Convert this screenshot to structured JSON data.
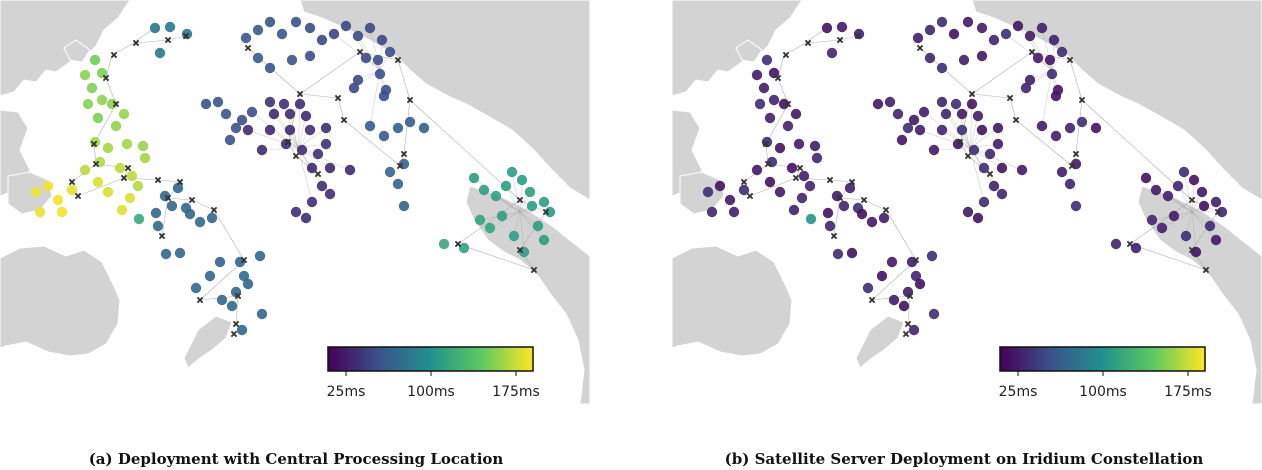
{
  "panels": [
    {
      "id": "a",
      "caption": "(a) Deployment with Central Processing Location",
      "colorbar": {
        "ticks": [
          "25ms",
          "100ms",
          "175ms"
        ],
        "colormap": "viridis"
      },
      "node_color_mode": "latency"
    },
    {
      "id": "b",
      "caption": "(b) Satellite Server Deployment on Iridium Constellation",
      "colorbar": {
        "ticks": [
          "25ms",
          "100ms",
          "175ms"
        ],
        "colormap": "viridis"
      },
      "node_color_mode": "uniform"
    }
  ],
  "colors": {
    "land": "#d3d3d3",
    "ocean": "#ffffff",
    "links": "#9e9e9e",
    "server_marker": "#333333",
    "viridis": [
      "#440154",
      "#3b528b",
      "#21918c",
      "#5ec962",
      "#fde725"
    ]
  },
  "legend": {
    "server_icon": "x-marker-icon",
    "node_icon": "circle-icon"
  }
}
